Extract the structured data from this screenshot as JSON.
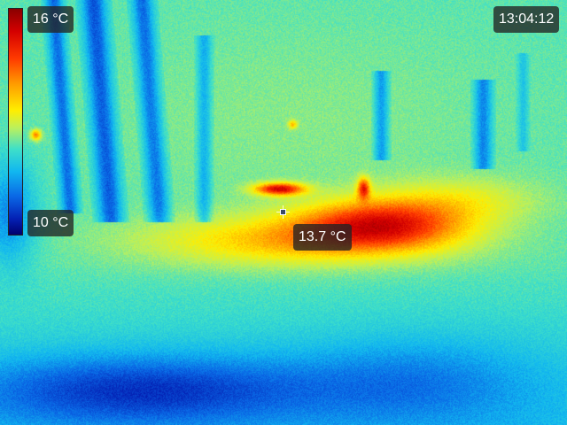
{
  "scale": {
    "max_label": "16 °C",
    "min_label": "10 °C",
    "palette": [
      "#00006e",
      "#0420b4",
      "#0a68e6",
      "#11b7f0",
      "#3fe0c8",
      "#b8f060",
      "#ffee00",
      "#ff9a00",
      "#ff3a00",
      "#d40000",
      "#8a0000"
    ]
  },
  "clock": {
    "time": "13:04:12"
  },
  "spot_meter": {
    "value": "13.7 °C",
    "icon": "crosshair-icon"
  }
}
